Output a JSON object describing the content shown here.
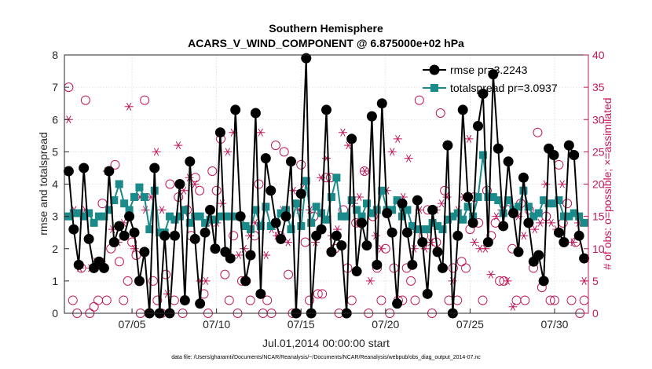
{
  "chart_data": {
    "type": "line",
    "title": "Southern Hemisphere",
    "subtitle": "ACARS_V_WIND_COMPONENT @ 6.875000e+02 hPa",
    "xlabel": "Jul.01,2014 00:00:00 start",
    "ylabel": "rmse and totalspread",
    "ylabel_right": "# of obs: o=possible; ×=assimilated",
    "footnote": "data file: /Users/gharamti/Documents/NCAR/Reanalysis/~/Documents/NCAR/Reanalysis/webpub/obs_diag_output_2014-07.nc",
    "x_ticks": [
      5,
      10,
      15,
      20,
      25,
      30
    ],
    "x_tick_labels": [
      "07/05",
      "07/10",
      "07/15",
      "07/20",
      "07/25",
      "07/30"
    ],
    "xlim": [
      1,
      32
    ],
    "ylim": [
      0,
      8
    ],
    "y_ticks": [
      0,
      1,
      2,
      3,
      4,
      5,
      6,
      7,
      8
    ],
    "ylim_right": [
      0,
      40
    ],
    "y_ticks_right": [
      0,
      5,
      10,
      15,
      20,
      25,
      30,
      35,
      40
    ],
    "colors": {
      "rmse": "#000000",
      "spread": "#1a8a8a",
      "obs": "#c2185b"
    },
    "series": [
      {
        "name": "rmse pr=3.2243",
        "axis": "left",
        "values": [
          4.4,
          2.6,
          1.5,
          4.5,
          2.3,
          1.4,
          1.6,
          1.4,
          4.4,
          2.2,
          2.7,
          2.4,
          3.0,
          2.5,
          1.0,
          1.9,
          0.0,
          4.5,
          0.0,
          2.4,
          0.0,
          2.4,
          4.0,
          0.4,
          4.7,
          2.3,
          0.3,
          2.5,
          3.2,
          2.0,
          5.6,
          1.9,
          1.7,
          6.3,
          3.0,
          1.0,
          1.8,
          6.2,
          0.6,
          4.8,
          3.8,
          2.8,
          2.3,
          3.0,
          4.7,
          0.0,
          3.7,
          7.9,
          0.0,
          2.4,
          2.6,
          6.3,
          1.9,
          2.4,
          2.1,
          0.0,
          5.4,
          1.3,
          2.8,
          2.1,
          6.1,
          1.5,
          6.5,
          3.1,
          2.5,
          0.3,
          3.4,
          2.5,
          1.5,
          3.5,
          2.2,
          0.6,
          3.2,
          1.9,
          1.4,
          5.2,
          0.0,
          2.4,
          6.3,
          3.6,
          2.8,
          5.8,
          6.8,
          2.2,
          7.4,
          5.1,
          2.7,
          4.7,
          3.1,
          1.9,
          4.2,
          2.8,
          1.6,
          1.8,
          1.0,
          5.1,
          4.9,
          2.5,
          2.2,
          5.2,
          4.9,
          2.4,
          1.7
        ]
      },
      {
        "name": "totalspread pr=3.0937",
        "axis": "left",
        "values": [
          3.0,
          3.1,
          3.1,
          3.0,
          3.1,
          2.8,
          3.0,
          3.0,
          3.2,
          3.5,
          4.0,
          3.4,
          3.2,
          3.6,
          3.9,
          3.6,
          2.6,
          3.8,
          2.5,
          2.5,
          3.0,
          2.9,
          3.0,
          3.2,
          2.8,
          3.0,
          3.0,
          2.8,
          2.9,
          2.9,
          3.0,
          3.0,
          3.0,
          3.0,
          3.0,
          2.7,
          2.6,
          3.2,
          2.7,
          3.3,
          2.7,
          2.8,
          3.1,
          3.2,
          2.6,
          3.4,
          2.7,
          4.1,
          2.8,
          3.3,
          3.1,
          2.9,
          3.6,
          4.2,
          3.0,
          3.0,
          3.5,
          3.2,
          3.0,
          3.4,
          3.1,
          3.2,
          3.8,
          3.2,
          3.2,
          3.5,
          3.0,
          3.2,
          2.7,
          2.6,
          2.6,
          2.6,
          2.8,
          2.7,
          2.6,
          2.9,
          3.0,
          3.1,
          2.9,
          3.3,
          3.0,
          3.6,
          4.9,
          3.6,
          3.6,
          3.5,
          3.1,
          3.5,
          3.2,
          3.3,
          3.8,
          3.3,
          3.0,
          3.1,
          3.5,
          3.4,
          3.4,
          3.5,
          3.0,
          3.0,
          3.1,
          3.0,
          2.8
        ]
      },
      {
        "name": "obs possible",
        "axis": "right",
        "marker": "circle",
        "values": [
          35,
          2,
          0,
          7,
          33,
          0,
          1,
          2,
          17,
          2,
          10,
          23,
          8,
          2,
          5,
          11,
          9,
          0,
          33,
          0,
          5,
          2,
          0,
          6,
          20,
          2,
          18,
          0,
          16,
          12,
          21,
          19,
          3,
          0,
          22,
          19,
          27,
          6,
          2,
          12,
          0,
          5,
          5,
          2,
          12,
          20,
          0,
          2,
          0,
          26,
          12,
          25,
          6,
          0,
          0,
          23,
          11,
          2,
          15,
          3,
          3,
          21,
          21,
          10,
          0,
          16,
          7,
          2,
          14,
          14,
          22,
          0,
          15,
          7,
          2,
          10,
          0,
          7,
          2,
          2,
          7,
          5,
          2,
          33,
          12,
          16,
          0,
          11,
          31,
          19,
          2,
          7,
          2,
          8,
          7,
          13,
          18,
          14,
          2,
          19,
          12,
          14,
          5,
          5,
          16,
          10,
          2,
          17,
          2,
          16,
          7,
          28,
          4,
          15,
          2,
          2,
          23,
          14,
          17,
          2,
          11,
          0,
          2
        ]
      },
      {
        "name": "obs assimilated",
        "axis": "right",
        "marker": "star",
        "values": [
          30,
          16,
          7,
          16,
          7,
          8,
          8,
          22,
          13,
          11,
          14,
          32,
          10,
          18,
          16,
          18,
          25,
          16,
          3,
          12,
          26,
          19,
          21,
          20,
          5,
          5,
          14,
          14,
          17,
          25,
          28,
          9,
          10,
          12,
          14,
          28,
          9,
          13,
          12,
          16,
          11,
          19,
          16,
          20,
          16,
          11,
          21,
          24,
          12,
          13,
          28,
          26,
          17,
          18,
          22,
          5,
          12,
          10,
          19,
          25,
          27,
          18,
          24,
          10,
          16,
          10,
          11,
          16,
          17,
          18,
          5,
          16,
          18,
          27,
          11,
          10,
          10,
          6,
          15,
          16,
          5,
          1,
          15,
          12,
          14,
          13,
          14,
          20,
          14,
          13,
          20,
          15,
          11,
          14,
          5
        ]
      }
    ],
    "legend": [
      "rmse pr=3.2243",
      "totalspread pr=3.0937"
    ],
    "legend_position": "top-right"
  }
}
